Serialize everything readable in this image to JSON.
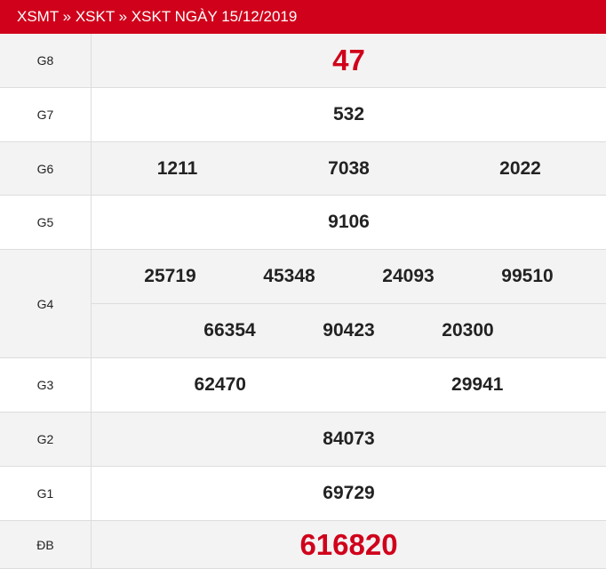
{
  "header": {
    "title": "XSMT » XSKT » XSKT NGÀY 15/12/2019"
  },
  "prizes": [
    {
      "label": "G8",
      "numbers": [
        "47"
      ]
    },
    {
      "label": "G7",
      "numbers": [
        "532"
      ]
    },
    {
      "label": "G6",
      "numbers": [
        "1211",
        "7038",
        "2022"
      ]
    },
    {
      "label": "G5",
      "numbers": [
        "9106"
      ]
    },
    {
      "label": "G4",
      "numbers": [
        "25719",
        "45348",
        "24093",
        "99510",
        "66354",
        "90423",
        "20300"
      ]
    },
    {
      "label": "G3",
      "numbers": [
        "62470",
        "29941"
      ]
    },
    {
      "label": "G2",
      "numbers": [
        "84073"
      ]
    },
    {
      "label": "G1",
      "numbers": [
        "69729"
      ]
    },
    {
      "label": "ĐB",
      "numbers": [
        "616820"
      ]
    }
  ],
  "colors": {
    "accent": "#d0021b"
  }
}
